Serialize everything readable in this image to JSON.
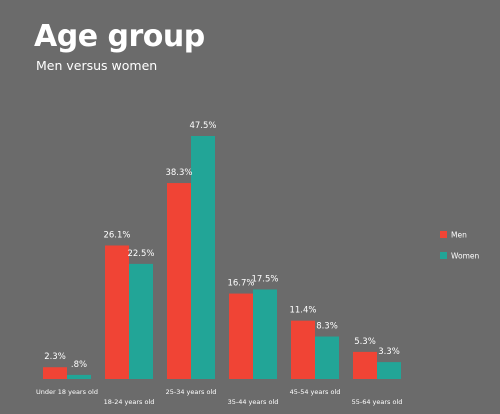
{
  "chart_data": {
    "type": "bar",
    "title": "Age group",
    "subtitle": "Men versus women",
    "categories": [
      "Under 18 years old",
      "18-24 years old",
      "25-34 years old",
      "35-44 years old",
      "45-54 years old",
      "55-64 years old"
    ],
    "series": [
      {
        "name": "Men",
        "color": "#f04435",
        "values": [
          2.3,
          26.1,
          38.3,
          16.7,
          11.4,
          5.3
        ],
        "labels": [
          "2.3%",
          "26.1%",
          "38.3%",
          "16.7%",
          "11.4%",
          "5.3%"
        ]
      },
      {
        "name": "Women",
        "color": "#22a597",
        "values": [
          0.8,
          22.5,
          47.5,
          17.5,
          8.3,
          3.3
        ],
        "labels": [
          ".8%",
          "22.5%",
          "47.5%",
          "17.5%",
          "8.3%",
          "3.3%"
        ]
      }
    ],
    "ylim": [
      0,
      47.5
    ],
    "grid": false,
    "legend_position": "right"
  }
}
